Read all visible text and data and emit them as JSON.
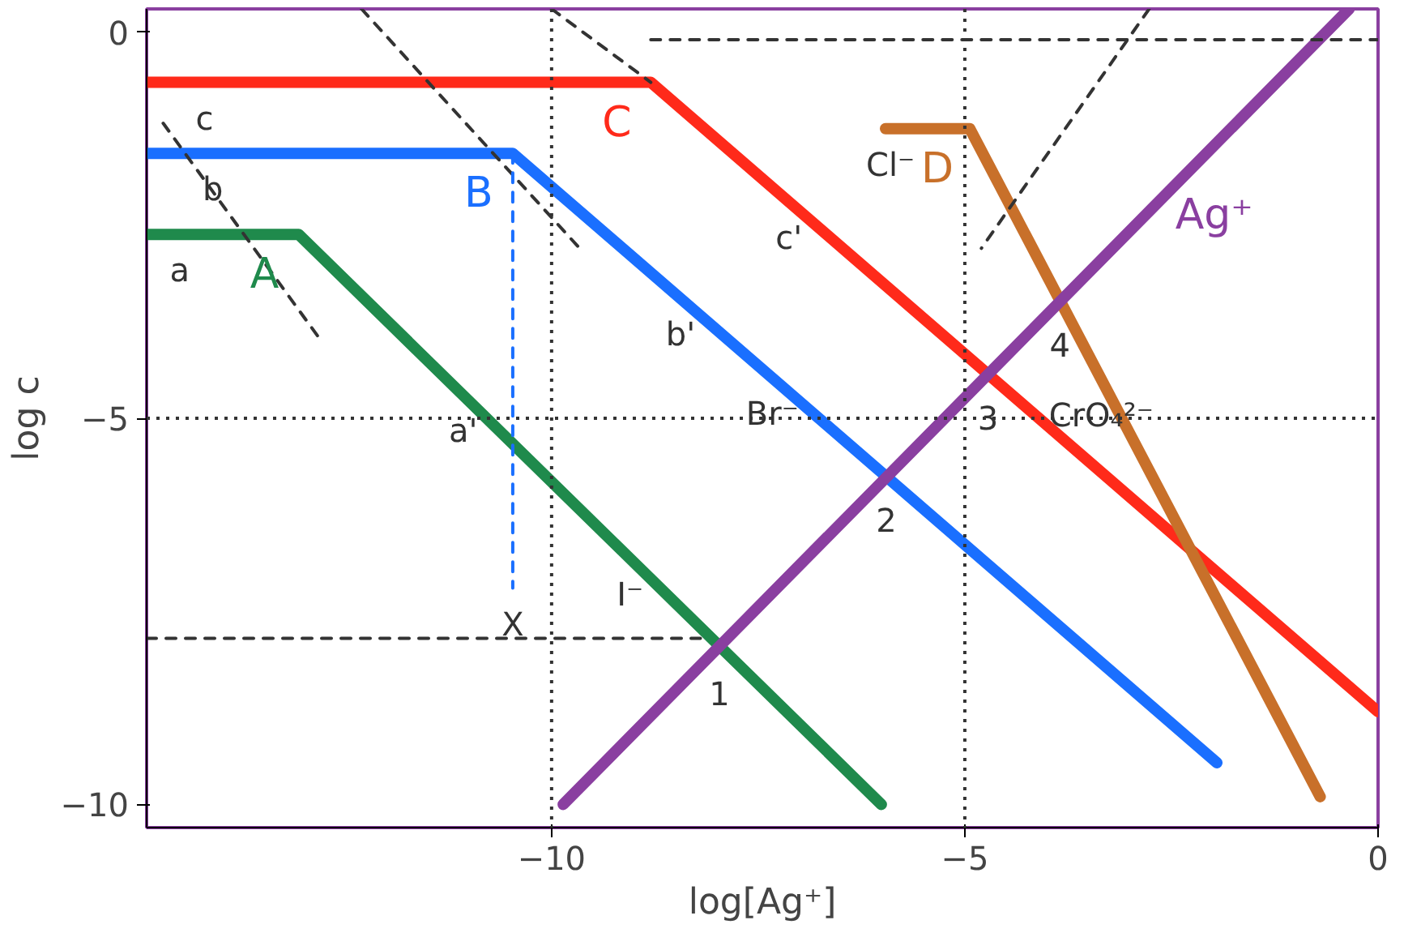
{
  "chart_data": {
    "type": "line",
    "xlabel": "log[Ag⁺]",
    "ylabel": "log c",
    "xlim": [
      -14.9,
      0
    ],
    "ylim": [
      -10.3,
      0.3
    ],
    "xticks": [
      -10,
      -5,
      0
    ],
    "yticks": [
      0,
      -5,
      -10
    ],
    "grid": false,
    "marker": "none",
    "series": [
      {
        "name": "C",
        "color": "#ff2a1a",
        "x": [
          -14.9,
          -8.8,
          0
        ],
        "values": [
          -0.65,
          -0.65,
          -8.8
        ]
      },
      {
        "name": "B",
        "color": "#1a6fff",
        "x": [
          -14.9,
          -10.47,
          -1.95
        ],
        "values": [
          -1.57,
          -1.57,
          -9.46
        ]
      },
      {
        "name": "A",
        "color": "#1f8a4c",
        "x": [
          -14.9,
          -13.06,
          -6.01
        ],
        "values": [
          -2.62,
          -2.62,
          -10
        ]
      },
      {
        "name": "D",
        "color": "#c8702a",
        "x": [
          -5.96,
          -4.94,
          -0.7
        ],
        "values": [
          -1.25,
          -1.25,
          -9.9
        ]
      },
      {
        "name": "Ag⁺",
        "color": "#8a3fa0",
        "x": [
          -9.86,
          -0.35
        ],
        "values": [
          -10,
          0.3
        ]
      },
      {
        "color": "#333333",
        "line_style": "dashed",
        "x": [
          -14.7,
          -12.8
        ],
        "values": [
          -1.18,
          -3.98
        ]
      },
      {
        "color": "#333333",
        "line_style": "dashed",
        "x": [
          -12.3,
          -9.66
        ],
        "values": [
          0.3,
          -2.8
        ]
      },
      {
        "color": "#333333",
        "line_style": "dashed",
        "x": [
          -10.0,
          -8.8
        ],
        "values": [
          0.3,
          -0.65
        ]
      },
      {
        "color": "#333333",
        "line_style": "dashed",
        "x": [
          -2.77,
          -4.8
        ],
        "values": [
          0.3,
          -2.8
        ]
      },
      {
        "color": "#333333",
        "line_style": "dashed",
        "x": [
          -8.8,
          0
        ],
        "values": [
          -0.1,
          -0.1
        ]
      },
      {
        "color": "#333333",
        "line_style": "dashed",
        "x": [
          -14.9,
          -8.2
        ],
        "values": [
          -7.85,
          -7.85
        ]
      },
      {
        "color": "#1a6fff",
        "line_style": "dashed",
        "x": [
          -10.47,
          -10.47
        ],
        "values": [
          -1.57,
          -7.2
        ]
      }
    ],
    "ref_lines": [
      {
        "axis": "x",
        "value": -10,
        "line_style": "dotted",
        "color": "#333333"
      },
      {
        "axis": "x",
        "value": -5,
        "line_style": "dotted",
        "color": "#333333"
      },
      {
        "axis": "y",
        "value": -5,
        "line_style": "dotted",
        "color": "#333333"
      }
    ],
    "annotations": [
      {
        "text": "c",
        "x": -14.2,
        "y": -0.65
      },
      {
        "text": "b",
        "x": -14.1,
        "y": -1.57
      },
      {
        "text": "a",
        "x": -14.5,
        "y": -2.62
      },
      {
        "text": "c'",
        "x": -7.13,
        "y": -2.2
      },
      {
        "text": "b'",
        "x": -8.44,
        "y": -3.45
      },
      {
        "text": "a'",
        "x": -11.07,
        "y": -4.7
      },
      {
        "text": "Cl⁻",
        "x": -5.9,
        "y": -1.25
      },
      {
        "text": "Br⁻",
        "x": -7.33,
        "y": -4.48
      },
      {
        "text": "I⁻",
        "x": -9.05,
        "y": -6.82
      },
      {
        "text": "CrO₄²⁻",
        "x": -3.35,
        "y": -4.5
      },
      {
        "text": "1",
        "x": -7.97,
        "y": -8.0
      },
      {
        "text": "2",
        "x": -5.95,
        "y": -5.76
      },
      {
        "text": "3",
        "x": -4.72,
        "y": -4.43
      },
      {
        "text": "4",
        "x": -3.85,
        "y": -3.49
      },
      {
        "text": "X",
        "x": -10.47,
        "y": -7.2
      }
    ]
  }
}
